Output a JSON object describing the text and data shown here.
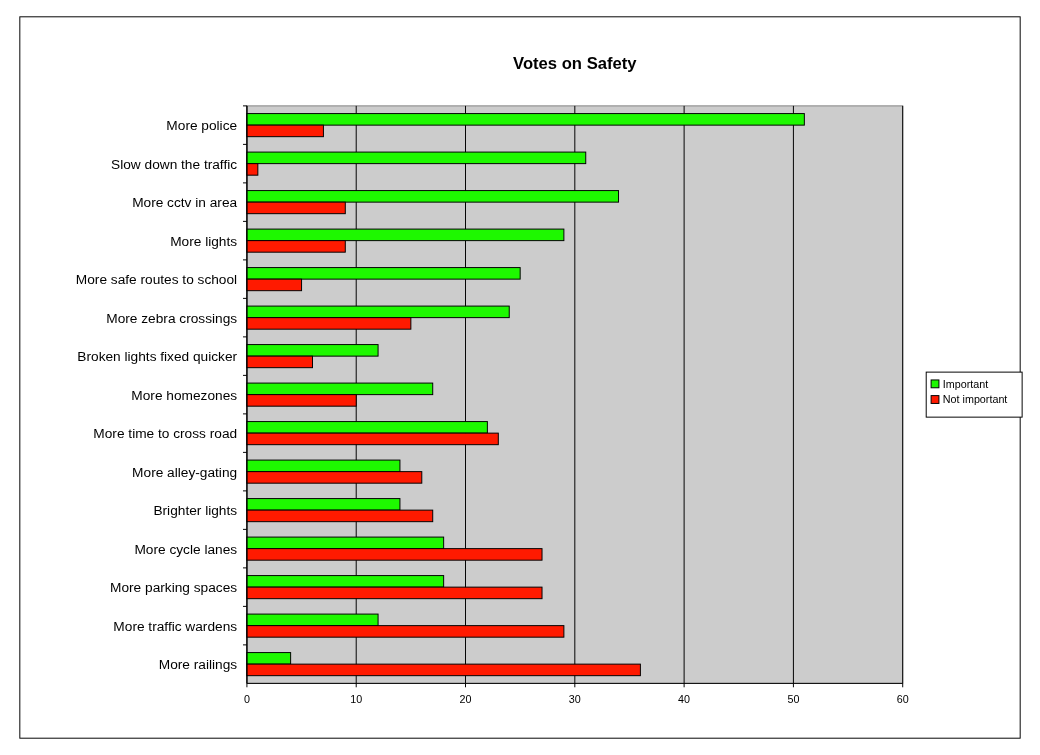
{
  "chart_data": {
    "type": "bar",
    "orientation": "horizontal",
    "title": "Votes on Safety",
    "categories": [
      "More police",
      "Slow down the traffic",
      "More cctv in area",
      "More lights",
      "More safe routes to school",
      "More zebra crossings",
      "Broken lights fixed quicker",
      "More homezones",
      "More time to cross road",
      "More alley-gating",
      "Brighter lights",
      "More cycle lanes",
      "More parking spaces",
      "More traffic wardens",
      "More railings"
    ],
    "series": [
      {
        "name": "Important",
        "color": "#1ef800",
        "values": [
          51,
          31,
          34,
          29,
          25,
          24,
          12,
          17,
          22,
          14,
          14,
          18,
          18,
          12,
          4
        ]
      },
      {
        "name": "Not important",
        "color": "#ff1a00",
        "values": [
          7,
          1,
          9,
          9,
          5,
          15,
          6,
          10,
          23,
          16,
          17,
          27,
          27,
          29,
          36
        ]
      }
    ],
    "xlim": [
      0,
      60
    ],
    "xticks": [
      0,
      10,
      20,
      30,
      40,
      50,
      60
    ],
    "grid": "x",
    "legend": "right"
  }
}
